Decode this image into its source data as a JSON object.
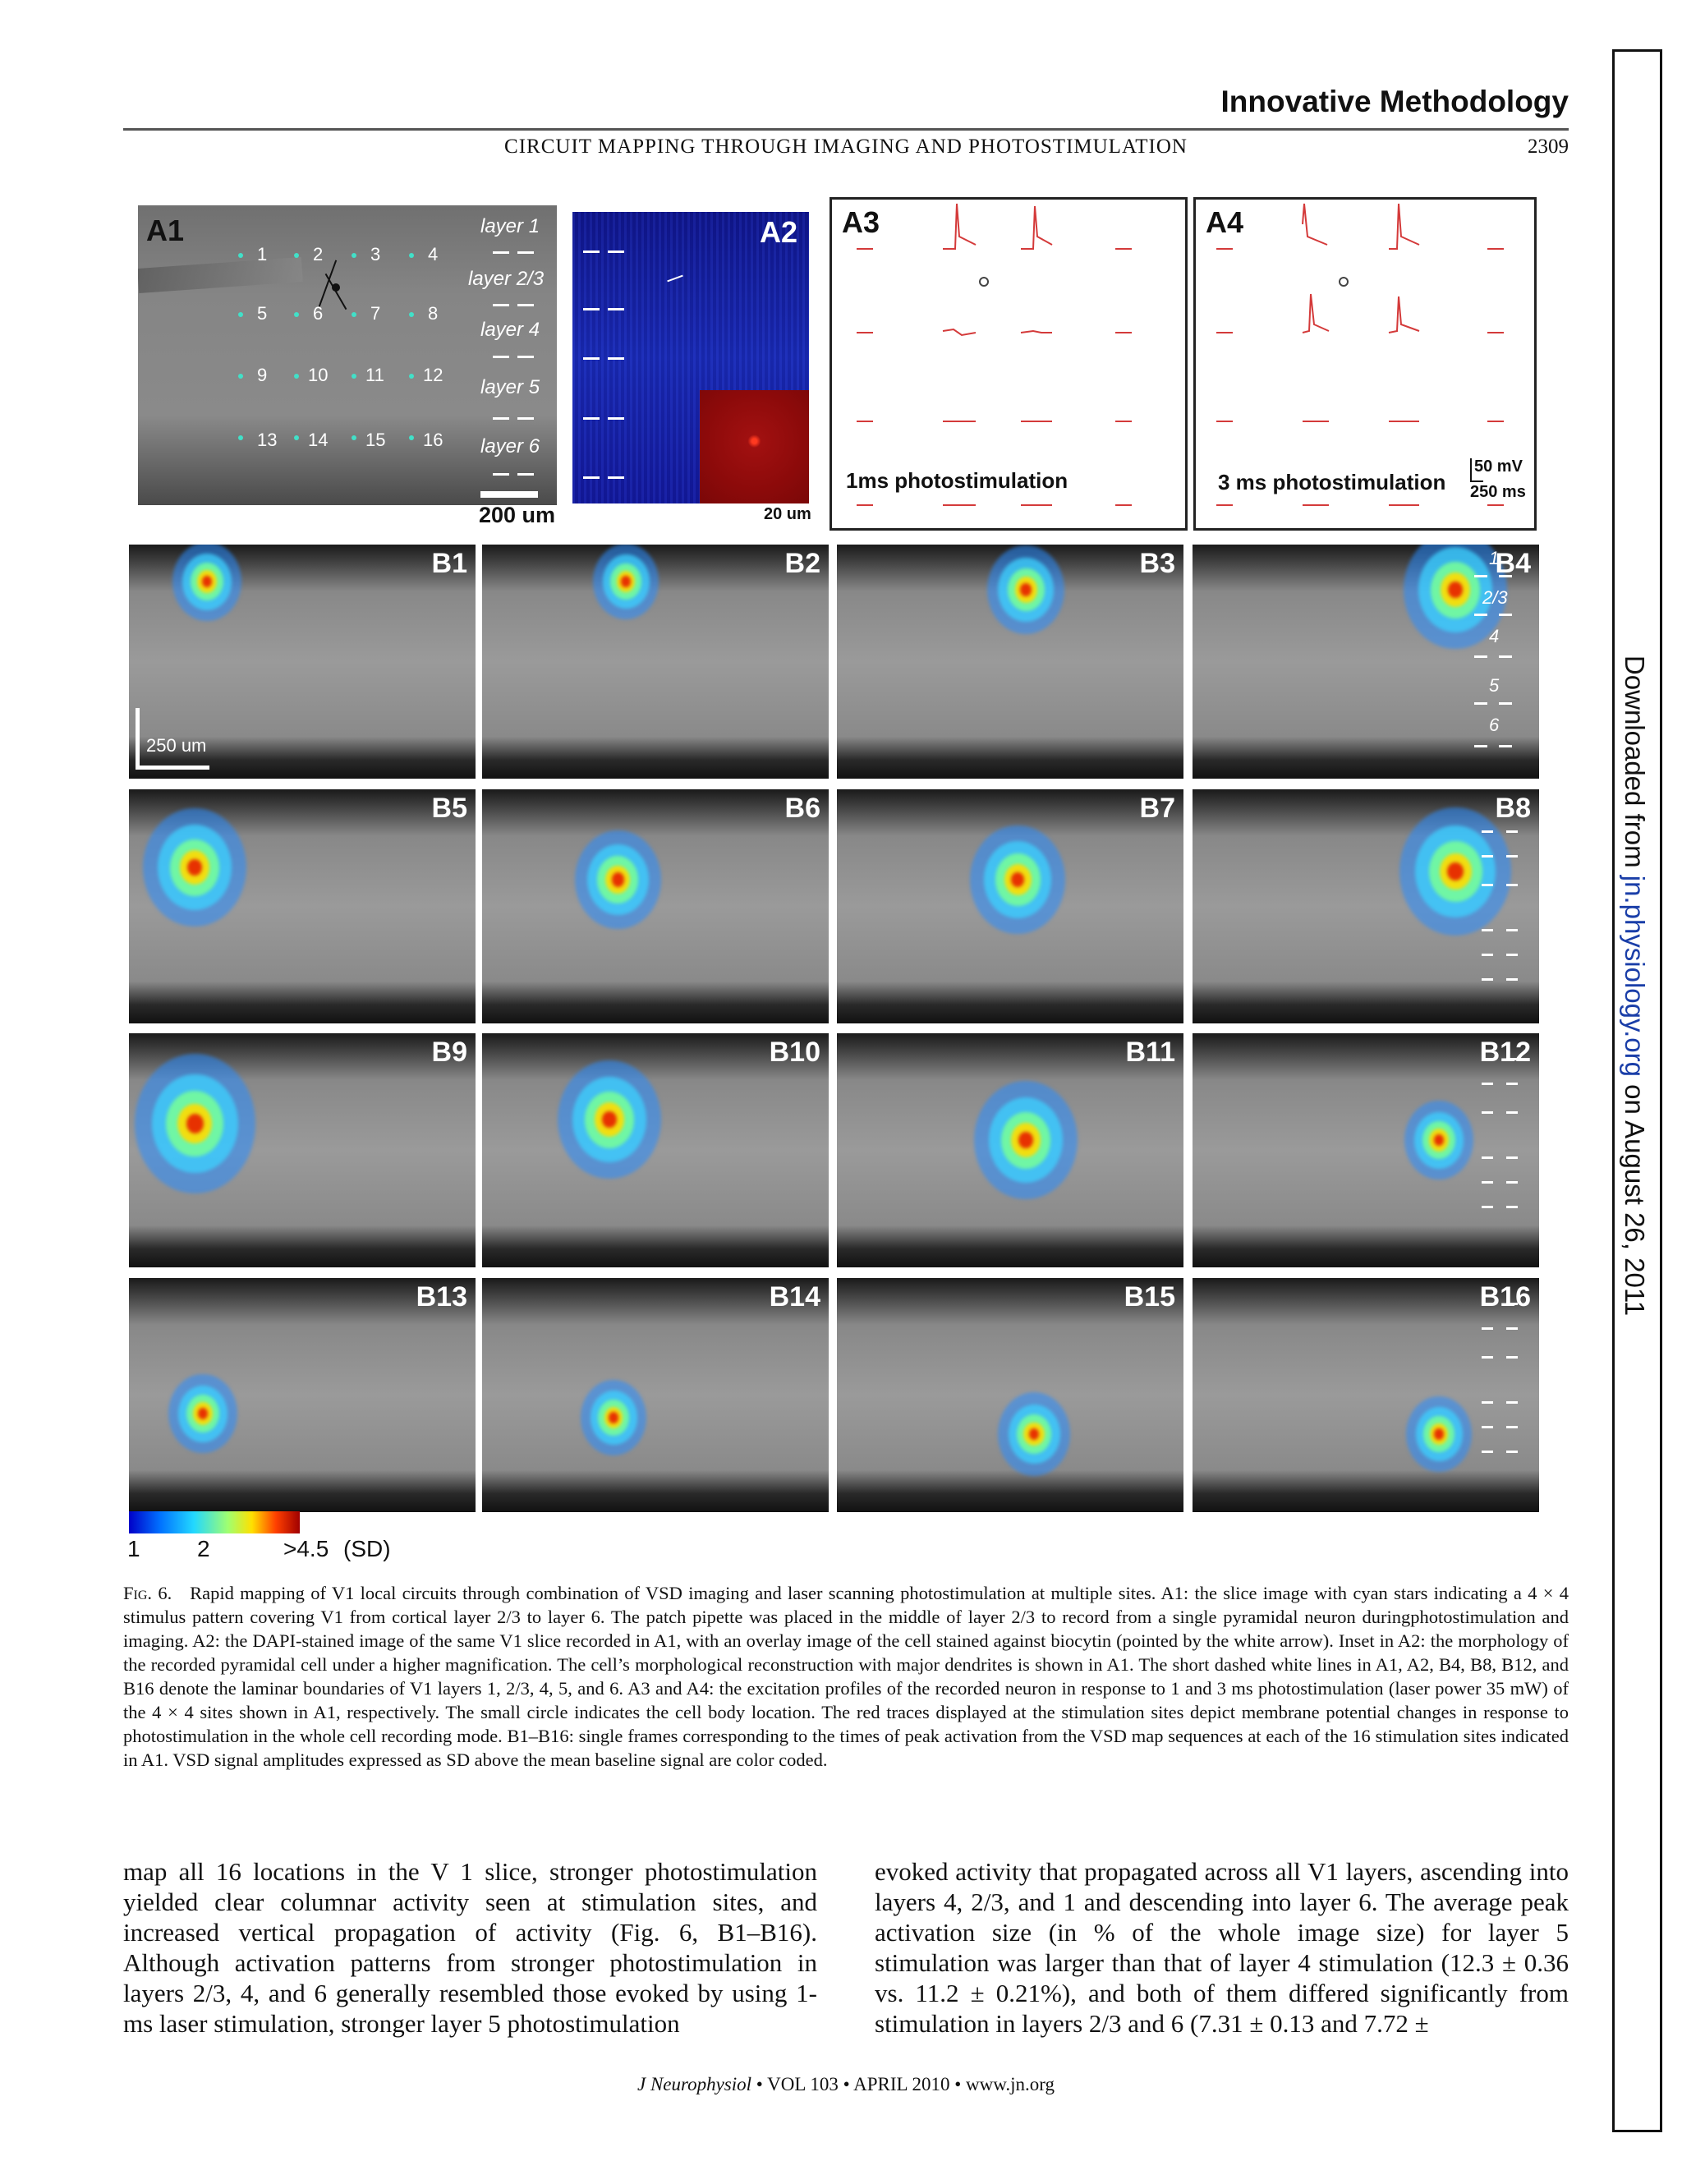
{
  "header": {
    "section": "Innovative Methodology",
    "running_title": "CIRCUIT MAPPING THROUGH IMAGING AND PHOTOSTIMULATION",
    "page_number": "2309"
  },
  "sidebar": {
    "prefix": "Downloaded from ",
    "link": "jn.physiology.org",
    "suffix": " on August 26, 2011"
  },
  "figure": {
    "a1": {
      "label": "A1",
      "layers": [
        "layer 1",
        "layer 2/3",
        "layer 4",
        "layer 5",
        "layer 6"
      ],
      "sites": [
        "1",
        "2",
        "3",
        "4",
        "5",
        "6",
        "7",
        "8",
        "9",
        "10",
        "11",
        "12",
        "13",
        "14",
        "15",
        "16"
      ],
      "scale": "200 um"
    },
    "a2": {
      "label": "A2",
      "scale": "20 um"
    },
    "a3": {
      "label": "A3",
      "note": "1ms photostimulation"
    },
    "a4": {
      "label": "A4",
      "note": "3 ms photostimulation",
      "scale_v": "50 mV",
      "scale_t": "250 ms"
    },
    "b_panels": [
      "B1",
      "B2",
      "B3",
      "B4",
      "B5",
      "B6",
      "B7",
      "B8",
      "B9",
      "B10",
      "B11",
      "B12",
      "B13",
      "B14",
      "B15",
      "B16"
    ],
    "b4_layers": [
      "1",
      "2/3",
      "4",
      "5",
      "6"
    ],
    "b1_scale": "250 um",
    "colorbar": {
      "min": "1",
      "mid": "2",
      "max": ">4.5",
      "unit": "(SD)"
    }
  },
  "caption": {
    "fig": "Fig. 6.",
    "text": "Rapid mapping of V1 local circuits through combination of VSD imaging and laser scanning photostimulation at multiple sites. A1: the slice image with cyan stars indicating a 4 × 4 stimulus pattern covering V1 from cortical layer 2/3 to layer 6. The patch pipette was placed in the middle of layer 2/3 to record from a single pyramidal neuron duringphotostimulation and imaging. A2: the DAPI-stained image of the same V1 slice recorded in A1, with an overlay image of the cell stained against biocytin (pointed by the white arrow). Inset in A2: the morphology of the recorded pyramidal cell under a higher magnification. The cell’s morphological reconstruction with major dendrites is shown in A1. The short dashed white lines in A1, A2, B4, B8, B12, and B16 denote the laminar boundaries of V1 layers 1, 2/3, 4, 5, and 6. A3 and A4: the excitation profiles of the recorded neuron in response to 1 and 3 ms photostimulation (laser power 35 mW) of the 4 × 4 sites shown in A1, respectively. The small circle indicates the cell body location. The red traces displayed at the stimulation sites depict membrane potential changes in response to photostimulation in the whole cell recording mode. B1–B16: single frames corresponding to the times of peak activation from the VSD map sequences at each of the 16 stimulation sites indicated in A1. VSD signal amplitudes expressed as SD above the mean baseline signal are color coded."
  },
  "body": {
    "left": "map all 16 locations in the V 1 slice, stronger photostimulation yielded clear columnar activity seen at stimulation sites, and increased vertical propagation of activity (Fig. 6, B1–B16). Although activation patterns from stronger photostimulation in layers 2/3, 4, and 6 generally resembled those evoked by using 1-ms laser stimulation, stronger layer 5 photostimulation",
    "right": "evoked activity that propagated across all V1 layers, ascending into layers 4, 2/3, and 1 and descending into layer 6. The average peak activation size (in % of the whole image size) for layer 5 stimulation was larger than that of layer 4 stimulation (12.3 ± 0.36 vs. 11.2 ± 0.21%), and both of them differed significantly from stimulation in layers 2/3 and 6 (7.31 ± 0.13 and 7.72 ±"
  },
  "footer": {
    "journal": "J Neurophysiol",
    "info": " • VOL 103 • APRIL 2010 • www.jn.org"
  }
}
